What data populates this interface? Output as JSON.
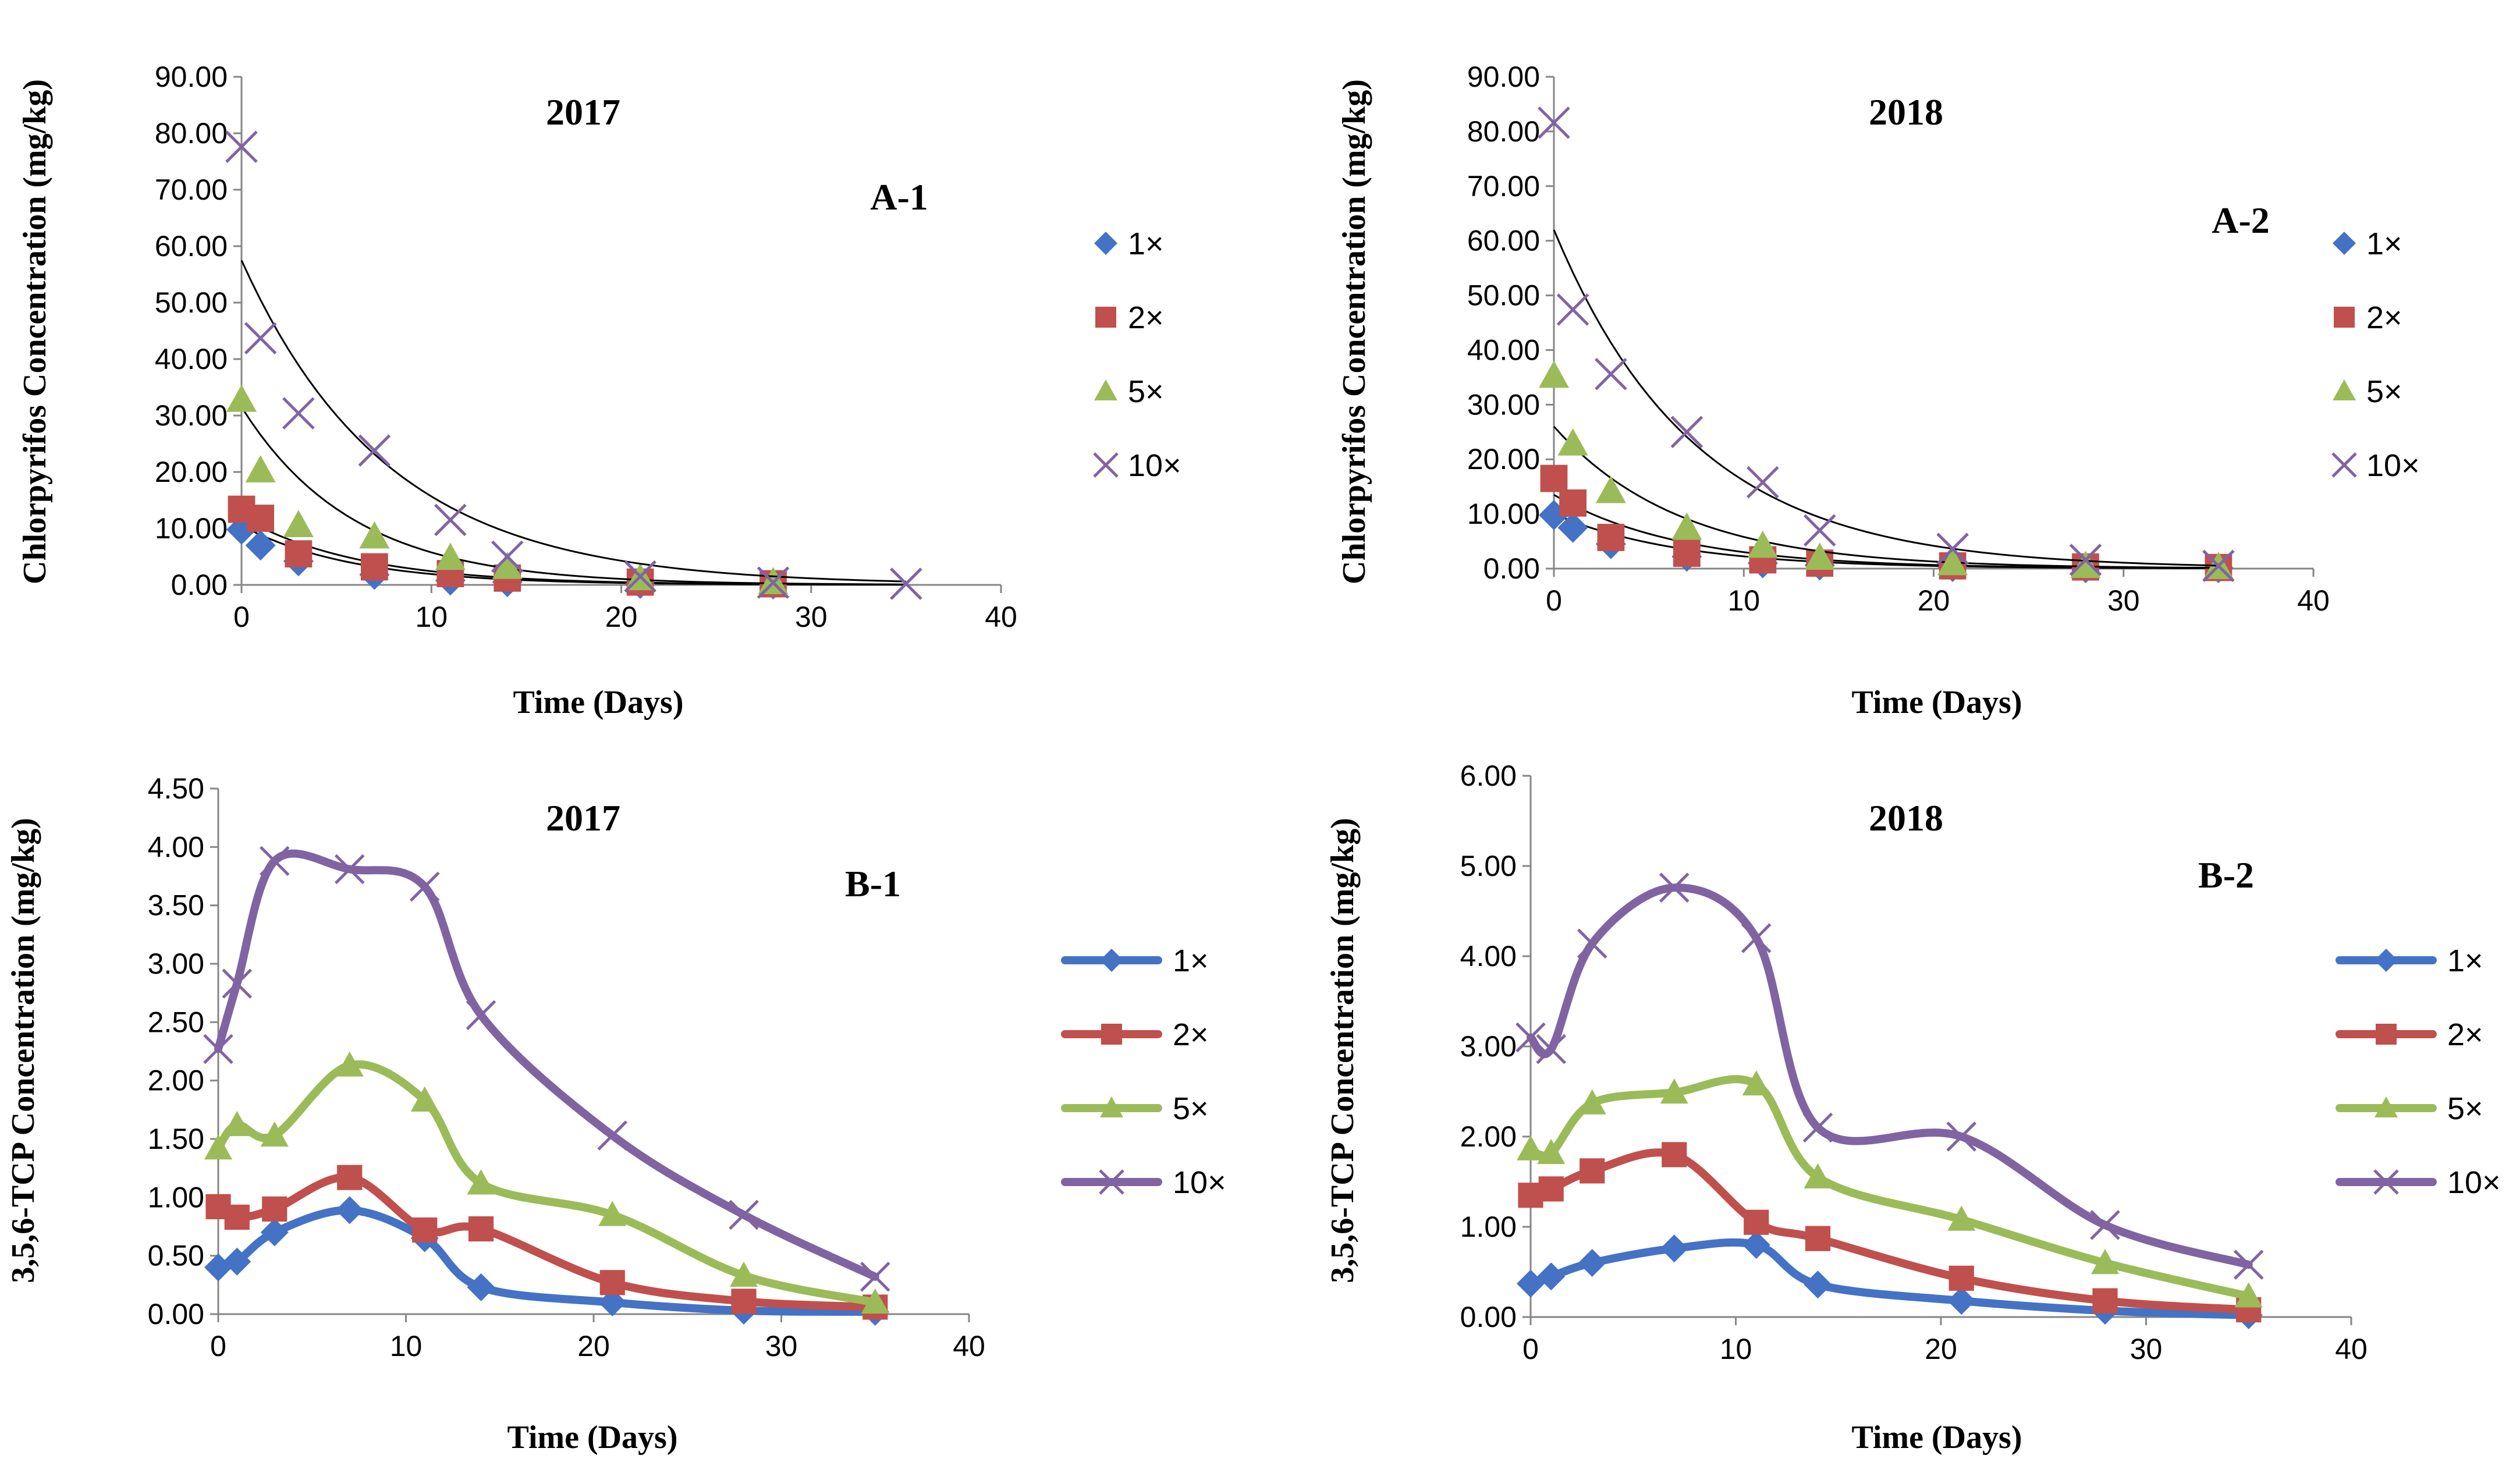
{
  "chart_data": [
    {
      "id": "A-1",
      "type": "scatter",
      "title": "2017",
      "panel_label": "A-1",
      "xlabel": "Time (Days)",
      "ylabel": "Chlorpyrifos Concentration (mg/kg)",
      "xlim": [
        0,
        40
      ],
      "ylim": [
        0,
        90
      ],
      "xticks": [
        "0",
        "10",
        "20",
        "30",
        "40"
      ],
      "yticks": [
        "0.00",
        "10.00",
        "20.00",
        "30.00",
        "40.00",
        "50.00",
        "60.00",
        "70.00",
        "80.00",
        "90.00"
      ],
      "x": [
        0,
        1,
        3,
        7,
        11,
        14,
        21,
        28,
        35
      ],
      "series": [
        {
          "name": "1×",
          "marker": "diamond",
          "color": "#4472C4",
          "values": [
            9.8,
            7.0,
            4.2,
            1.8,
            0.8,
            0.5,
            0.2,
            0.1,
            null
          ],
          "trend": [
            10.5,
            0.17
          ]
        },
        {
          "name": "2×",
          "marker": "square",
          "color": "#C0504D",
          "values": [
            13.4,
            11.8,
            5.5,
            3.2,
            2.0,
            1.2,
            0.5,
            0.2,
            null
          ],
          "trend": [
            12.0,
            0.16
          ]
        },
        {
          "name": "5×",
          "marker": "triangle",
          "color": "#9BBB59",
          "values": [
            32.8,
            20.3,
            10.6,
            8.6,
            4.8,
            3.2,
            1.2,
            0.5,
            null
          ],
          "trend": [
            31.5,
            0.17
          ]
        },
        {
          "name": "10×",
          "marker": "x",
          "color": "#8064A2",
          "values": [
            77.6,
            43.7,
            30.4,
            23.8,
            11.5,
            5.0,
            1.5,
            0.4,
            0.2
          ],
          "trend": [
            57.5,
            0.13
          ]
        }
      ]
    },
    {
      "id": "A-2",
      "type": "scatter",
      "title": "2018",
      "panel_label": "A-2",
      "xlabel": "Time (Days)",
      "ylabel": "Chlorpyrifos Concentration (mg/kg)",
      "xlim": [
        0,
        40
      ],
      "ylim": [
        0,
        90
      ],
      "xticks": [
        "0",
        "10",
        "20",
        "30",
        "40"
      ],
      "yticks": [
        "0.00",
        "10.00",
        "20.00",
        "30.00",
        "40.00",
        "50.00",
        "60.00",
        "70.00",
        "80.00",
        "90.00"
      ],
      "x": [
        0,
        1,
        3,
        7,
        11,
        14,
        21,
        28,
        35
      ],
      "series": [
        {
          "name": "1×",
          "marker": "diamond",
          "color": "#4472C4",
          "values": [
            9.8,
            7.5,
            4.5,
            2.2,
            1.0,
            0.6,
            0.3,
            0.1,
            0.1
          ],
          "trend": [
            10.0,
            0.15
          ]
        },
        {
          "name": "2×",
          "marker": "square",
          "color": "#C0504D",
          "values": [
            16.5,
            12.0,
            5.7,
            2.8,
            1.6,
            1.0,
            0.5,
            0.3,
            0.2
          ],
          "trend": [
            13.5,
            0.15
          ]
        },
        {
          "name": "5×",
          "marker": "triangle",
          "color": "#9BBB59",
          "values": [
            35.3,
            22.9,
            14.2,
            7.5,
            4.2,
            2.0,
            1.0,
            0.5,
            0.3
          ],
          "trend": [
            26.0,
            0.15
          ]
        },
        {
          "name": "10×",
          "marker": "x",
          "color": "#8064A2",
          "values": [
            81.6,
            47.4,
            35.6,
            25.0,
            15.8,
            7.0,
            3.6,
            1.6,
            0.5
          ],
          "trend": [
            62.0,
            0.135
          ]
        }
      ]
    },
    {
      "id": "B-1",
      "type": "line",
      "title": "2017",
      "panel_label": "B-1",
      "xlabel": "Time (Days)",
      "ylabel": "3,5,6-TCP Concentration (mg/kg)",
      "xlim": [
        0,
        40
      ],
      "ylim": [
        0,
        4.5
      ],
      "xticks": [
        "0",
        "10",
        "20",
        "30",
        "40"
      ],
      "yticks": [
        "0.00",
        "0.50",
        "1.00",
        "1.50",
        "2.00",
        "2.50",
        "3.00",
        "3.50",
        "4.00",
        "4.50"
      ],
      "x": [
        0,
        1,
        3,
        7,
        11,
        14,
        21,
        28,
        35
      ],
      "series": [
        {
          "name": "1×",
          "marker": "diamond",
          "color": "#4472C4",
          "values": [
            0.4,
            0.45,
            0.7,
            0.89,
            0.65,
            0.23,
            0.1,
            0.03,
            0.02
          ]
        },
        {
          "name": "2×",
          "marker": "square",
          "color": "#C0504D",
          "values": [
            0.92,
            0.83,
            0.9,
            1.17,
            0.72,
            0.73,
            0.27,
            0.11,
            0.06
          ]
        },
        {
          "name": "5×",
          "marker": "triangle",
          "color": "#9BBB59",
          "values": [
            1.42,
            1.62,
            1.53,
            2.13,
            1.83,
            1.12,
            0.85,
            0.33,
            0.1
          ]
        },
        {
          "name": "10×",
          "marker": "x",
          "color": "#8064A2",
          "values": [
            2.27,
            2.83,
            3.88,
            3.81,
            3.66,
            2.56,
            1.53,
            0.85,
            0.32
          ]
        }
      ]
    },
    {
      "id": "B-2",
      "type": "line",
      "title": "2018",
      "panel_label": "B-2",
      "xlabel": "Time (Days)",
      "ylabel": "3,5,6-TCP Concentration (mg/kg)",
      "xlim": [
        0,
        40
      ],
      "ylim": [
        0,
        6
      ],
      "xticks": [
        "0",
        "10",
        "20",
        "30",
        "40"
      ],
      "yticks": [
        "0.00",
        "1.00",
        "2.00",
        "3.00",
        "4.00",
        "5.00",
        "6.00"
      ],
      "x": [
        0,
        1,
        3,
        7,
        11,
        14,
        21,
        28,
        35
      ],
      "series": [
        {
          "name": "1×",
          "marker": "diamond",
          "color": "#4472C4",
          "values": [
            0.37,
            0.45,
            0.6,
            0.76,
            0.8,
            0.36,
            0.18,
            0.07,
            0.02
          ]
        },
        {
          "name": "2×",
          "marker": "square",
          "color": "#C0504D",
          "values": [
            1.35,
            1.42,
            1.62,
            1.8,
            1.05,
            0.87,
            0.43,
            0.18,
            0.08
          ]
        },
        {
          "name": "5×",
          "marker": "triangle",
          "color": "#9BBB59",
          "values": [
            1.86,
            1.82,
            2.37,
            2.49,
            2.58,
            1.55,
            1.08,
            0.6,
            0.23
          ]
        },
        {
          "name": "10×",
          "marker": "x",
          "color": "#8064A2",
          "values": [
            3.1,
            2.97,
            4.14,
            4.76,
            4.2,
            2.1,
            2.0,
            1.02,
            0.58
          ]
        }
      ]
    }
  ]
}
